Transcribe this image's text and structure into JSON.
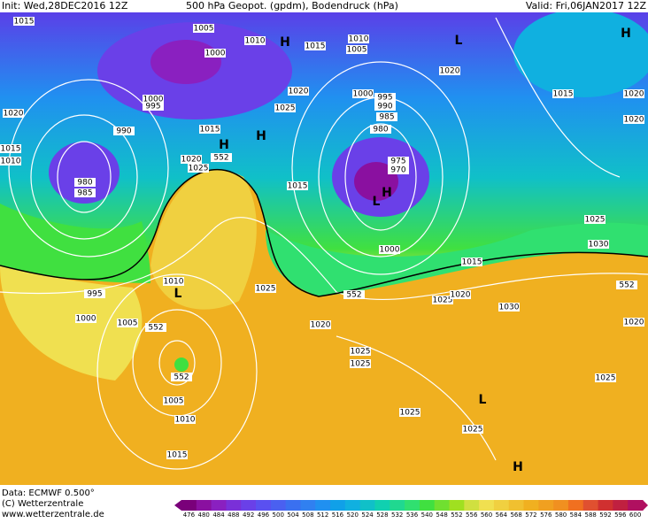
{
  "header": {
    "init": "Init: Wed,28DEC2016 12Z",
    "title": "500 hPa Geopot. (gpdm), Bodendruck (hPa)",
    "valid": "Valid: Fri,06JAN2017 12Z"
  },
  "map": {
    "labels": [
      "1015",
      "1005",
      "1000",
      "1010",
      "H",
      "1015",
      "1010",
      "1005",
      "L",
      "H",
      "1020",
      "1015",
      "1020",
      "1020",
      "1020",
      "1000",
      "995",
      "990",
      "1020",
      "1025",
      "1000",
      "995",
      "990",
      "985",
      "980",
      "1015",
      "H",
      "H",
      "975",
      "970",
      "1020",
      "1025",
      "552",
      "1015",
      "1010",
      "980",
      "985",
      "L",
      "H",
      "1015",
      "1025",
      "1030",
      "1000",
      "1015",
      "1010",
      "L",
      "995",
      "1025",
      "552",
      "1025",
      "1020",
      "552",
      "1030",
      "1020",
      "1000",
      "1005",
      "552",
      "1020",
      "1025",
      "1025",
      "552",
      "1005",
      "1025",
      "L",
      "1025",
      "1010",
      "1025",
      "1015",
      "H"
    ]
  },
  "footer": {
    "data": "Data: ECMWF  0.500°",
    "copyright": "(C) Wetterzentrale",
    "url": "www.wetterzentrale.de"
  },
  "legend": {
    "labels": [
      "476",
      "480",
      "484",
      "488",
      "492",
      "496",
      "500",
      "504",
      "508",
      "512",
      "516",
      "520",
      "524",
      "528",
      "532",
      "536",
      "540",
      "548",
      "552",
      "556",
      "560",
      "564",
      "568",
      "572",
      "576",
      "580",
      "584",
      "588",
      "592",
      "596",
      "600"
    ],
    "colors": [
      "#7a007a",
      "#8a10a0",
      "#8a20c0",
      "#7a30d8",
      "#6a40e8",
      "#5a50f0",
      "#4a60f0",
      "#3a70f0",
      "#3080f0",
      "#2090f0",
      "#10a0e8",
      "#10b0e0",
      "#10c0c8",
      "#10d0b0",
      "#20d890",
      "#30e070",
      "#40e040",
      "#70e030",
      "#a0e020",
      "#d0e040",
      "#f0e050",
      "#f0d040",
      "#f0c030",
      "#f0b020",
      "#f0a020",
      "#f09020",
      "#f07020",
      "#e05030",
      "#d03030",
      "#c02040",
      "#b01060"
    ]
  }
}
